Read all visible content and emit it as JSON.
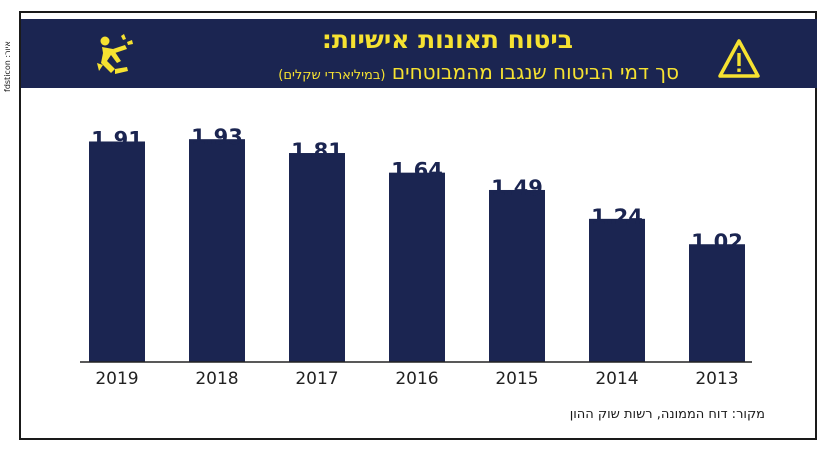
{
  "credit": "איור: fdsticon",
  "header": {
    "title": "ביטוח תאונות אישיות:",
    "subtitle": "סך דמי הביטוח שנגבו מהמבוטחים",
    "unit": "(במיליארדי שקלים)"
  },
  "icons": {
    "left": "falling-person-icon",
    "right": "warning-icon"
  },
  "colors": {
    "bar": "#1b2551",
    "accent": "#f6e231",
    "label": "#1b2551",
    "axis": "#222222"
  },
  "chart_data": {
    "type": "bar",
    "title": "סך דמי הביטוח שנגבו מהמבוטחים",
    "ylabel": "במיליארדי שקלים",
    "xlabel": "",
    "categories": [
      "2019",
      "2018",
      "2017",
      "2016",
      "2015",
      "2014",
      "2013"
    ],
    "values": [
      1.91,
      1.93,
      1.81,
      1.64,
      1.49,
      1.24,
      1.02
    ],
    "labels": [
      "1.91",
      "1.93",
      "1.81",
      "1.64",
      "1.49",
      "1.24",
      "1.02"
    ],
    "ylim": [
      0,
      2.2
    ],
    "grid": false
  },
  "footer": {
    "source": "מקור: דוח הממונה, רשות שוק ההון"
  }
}
